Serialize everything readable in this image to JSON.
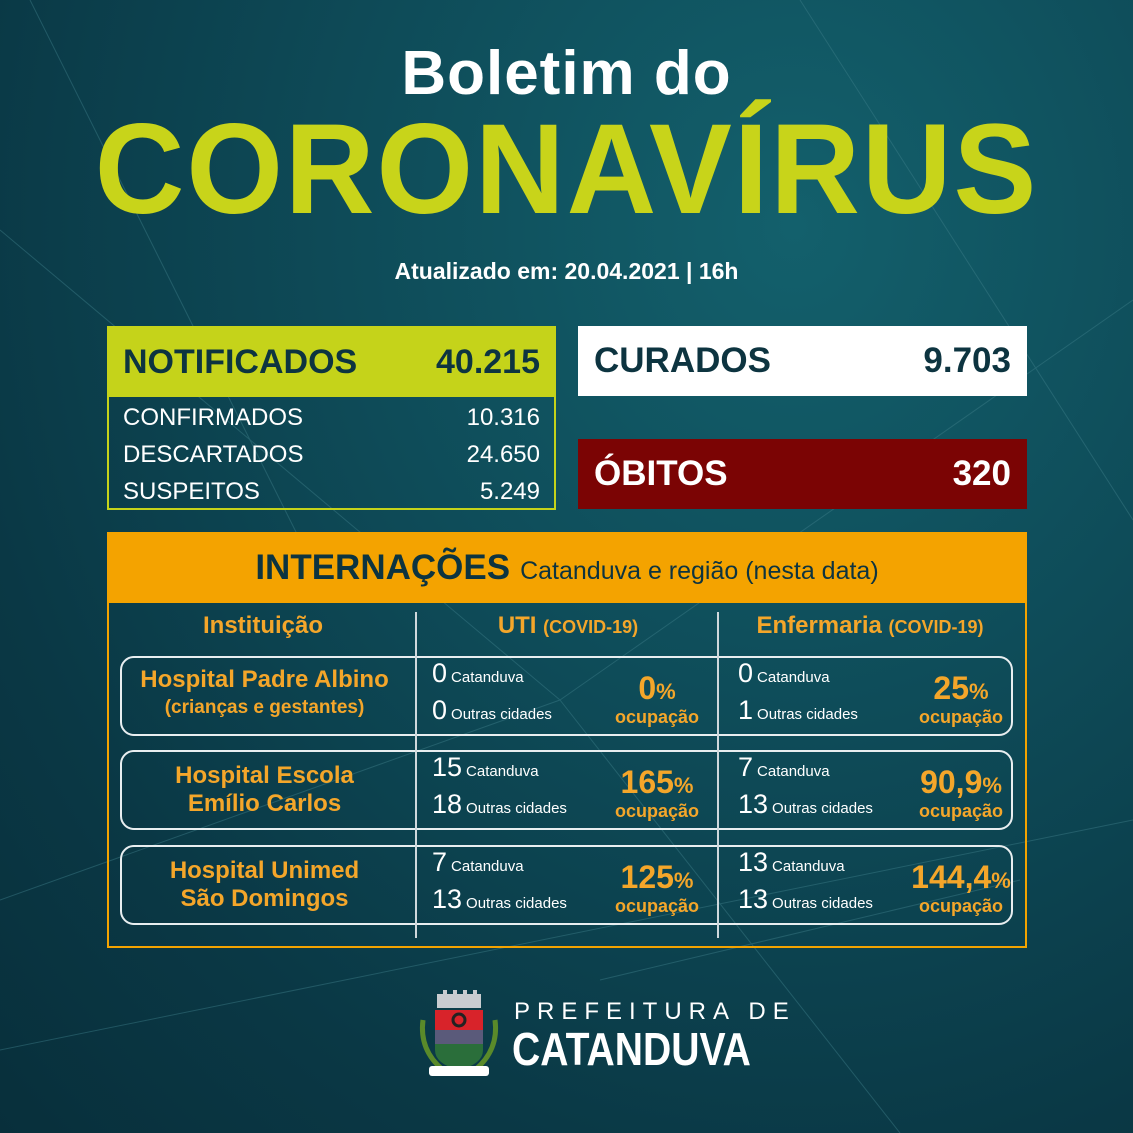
{
  "header": {
    "title_line1": "Boletim do",
    "title_line2": "CORONAVÍRUS",
    "updated": "Atualizado em: 20.04.2021 | 16h"
  },
  "notificados": {
    "label": "NOTIFICADOS",
    "value": "40.215",
    "rows": [
      {
        "label": "CONFIRMADOS",
        "value": "10.316"
      },
      {
        "label": "DESCARTADOS",
        "value": "24.650"
      },
      {
        "label": "SUSPEITOS",
        "value": "5.249"
      }
    ]
  },
  "curados": {
    "label": "CURADOS",
    "value": "9.703"
  },
  "obitos": {
    "label": "ÓBITOS",
    "value": "320"
  },
  "internacoes": {
    "title": "INTERNAÇÕES",
    "subtitle": "Catanduva e região (nesta data)",
    "columns": [
      {
        "label": "Instituição",
        "suffix": ""
      },
      {
        "label": "UTI",
        "suffix": "(COVID-19)"
      },
      {
        "label": "Enfermaria",
        "suffix": "(COVID-19)"
      }
    ],
    "cat_label": "Catanduva",
    "outras_label": "Outras cidades",
    "ocupacao_label": "ocupação",
    "pct_sign": "%",
    "rows": [
      {
        "name1": "Hospital Padre Albino",
        "name2": "(crianças e gestantes)",
        "uti": {
          "catanduva": "0",
          "outras": "0",
          "pct": "0"
        },
        "enf": {
          "catanduva": "0",
          "outras": "1",
          "pct": "25"
        }
      },
      {
        "name1": "Hospital Escola",
        "name2": "Emílio Carlos",
        "uti": {
          "catanduva": "15",
          "outras": "18",
          "pct": "165"
        },
        "enf": {
          "catanduva": "7",
          "outras": "13",
          "pct": "90,9"
        }
      },
      {
        "name1": "Hospital Unimed",
        "name2": "São Domingos",
        "uti": {
          "catanduva": "7",
          "outras": "13",
          "pct": "125"
        },
        "enf": {
          "catanduva": "13",
          "outras": "13",
          "pct": "144,4"
        }
      }
    ]
  },
  "footer": {
    "line1": "PREFEITURA DE",
    "line2": "CATANDUVA",
    "crest_text": "CATANDUVA"
  },
  "colors": {
    "lime": "#c5d31a",
    "orange": "#f4a300",
    "dark_red": "#7b0404",
    "bg": "#0e4b58"
  }
}
